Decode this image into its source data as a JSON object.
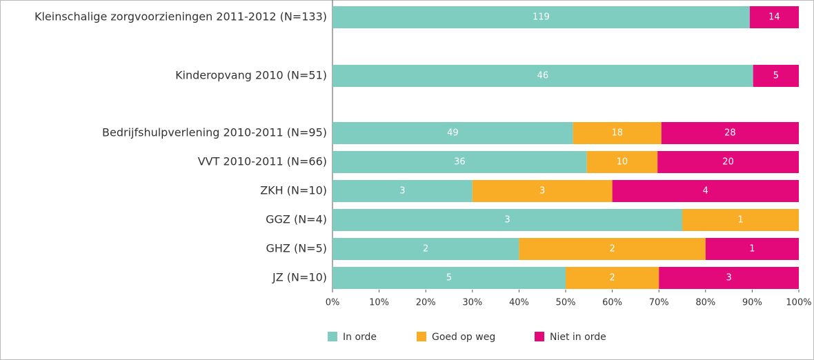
{
  "chart_data": {
    "type": "bar",
    "orientation": "horizontal",
    "stacking": "percent",
    "categories": [
      "Kleinschalige zorgvoorzieningen 2011-2012 (N=133)",
      "Kinderopvang 2010 (N=51)",
      "Bedrijfshulpverlening 2010-2011 (N=95)",
      "VVT 2010-2011 (N=66)",
      "ZKH (N=10)",
      "GGZ (N=4)",
      "GHZ (N=5)",
      "JZ (N=10)"
    ],
    "series": [
      {
        "name": "In orde",
        "color": "#7ecdc0",
        "values": [
          119,
          46,
          49,
          36,
          3,
          3,
          2,
          5
        ]
      },
      {
        "name": "Goed op weg",
        "color": "#f9ac25",
        "values": [
          null,
          null,
          18,
          10,
          3,
          1,
          2,
          2
        ]
      },
      {
        "name": "Niet in orde",
        "color": "#e3097a",
        "values": [
          14,
          5,
          28,
          20,
          4,
          null,
          1,
          3
        ]
      }
    ],
    "xlim": [
      0,
      100
    ],
    "xticks": [
      {
        "value": 0,
        "label": "0%"
      },
      {
        "value": 10,
        "label": "10%"
      },
      {
        "value": 20,
        "label": "20%"
      },
      {
        "value": 30,
        "label": "30%"
      },
      {
        "value": 40,
        "label": "40%"
      },
      {
        "value": 50,
        "label": "50%"
      },
      {
        "value": 60,
        "label": "60%"
      },
      {
        "value": 70,
        "label": "70%"
      },
      {
        "value": 80,
        "label": "80%"
      },
      {
        "value": 90,
        "label": "90%"
      },
      {
        "value": 100,
        "label": "100%"
      }
    ],
    "legend": "bottom"
  }
}
